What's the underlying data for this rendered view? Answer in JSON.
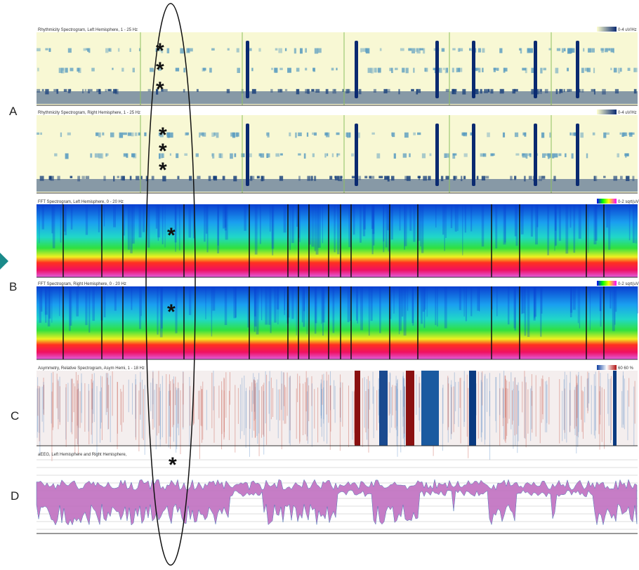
{
  "labels": {
    "a": "A",
    "b": "B",
    "c": "C",
    "d": "D"
  },
  "panels": [
    {
      "title": "Rhythmicity Spectrogram, Left Hemisphere, 1 - 25 Hz",
      "scale": "0-4 uV/Hz",
      "asterisks": [
        "*",
        "*",
        "*"
      ]
    },
    {
      "title": "Rhythmicity Spectrogram, Right Hemisphere, 1 - 25 Hz",
      "scale": "0-4 uV/Hz",
      "asterisks": [
        "*",
        "*",
        "*"
      ]
    },
    {
      "title": "FFT Spectrogram, Left Hemisphere, 0 - 20 Hz",
      "scale": "0-2 sqrt(uV)/Hz",
      "asterisks": [
        "*"
      ]
    },
    {
      "title": "FFT Spectrogram, Right Hemisphere, 0 - 20 Hz",
      "scale": "0-2 sqrt(uV)/Hz",
      "asterisks": [
        "*"
      ]
    },
    {
      "title": "Asymmetry, Relative Spectrogram, Asym Hemi, 1 - 18 Hz",
      "scale": "60 60 %",
      "asterisks": []
    },
    {
      "title": "aEEG, Left Hemisphere and Right Hemisphere,",
      "scale": "",
      "asterisks": [
        "*"
      ]
    }
  ]
}
